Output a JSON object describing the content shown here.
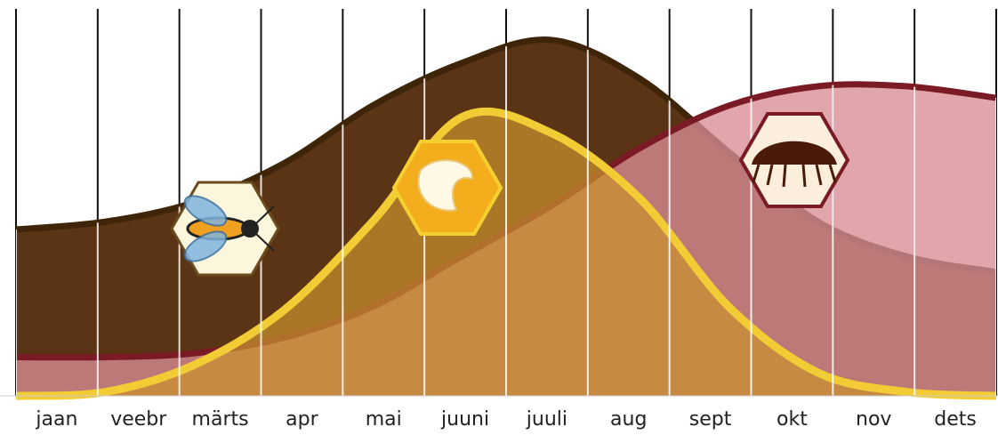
{
  "chart_data": {
    "type": "area",
    "categories": [
      "jaan",
      "veebr",
      "märts",
      "apr",
      "mai",
      "juuni",
      "juuli",
      "aug",
      "sept",
      "okt",
      "nov",
      "dets"
    ],
    "ylim": [
      0,
      100
    ],
    "series": [
      {
        "color": "#5a3414",
        "values": [
          43,
          45,
          50,
          60,
          75,
          86,
          92,
          82,
          63,
          45,
          36,
          32
        ]
      },
      {
        "color": "#d98c95",
        "values": [
          10,
          10,
          11,
          15,
          23,
          36,
          49,
          64,
          75,
          80,
          80,
          77
        ]
      },
      {
        "color": "#c9922f",
        "values": [
          0,
          1,
          8,
          22,
          45,
          72,
          68,
          51,
          23,
          6,
          1,
          0
        ]
      }
    ]
  }
}
